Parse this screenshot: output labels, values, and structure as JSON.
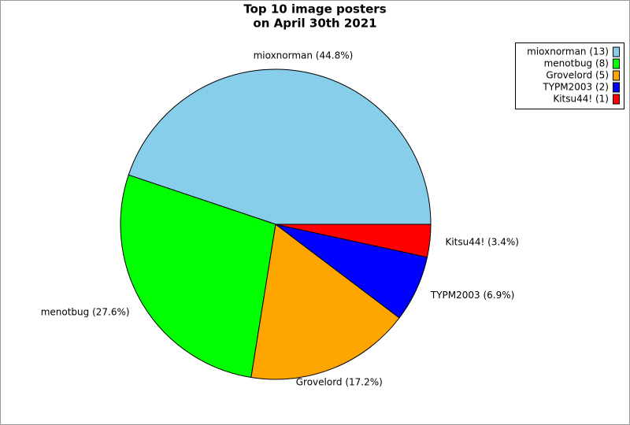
{
  "chart_data": {
    "type": "pie",
    "title": [
      "Top 10 image posters",
      "on April 30th 2021"
    ],
    "categories": [
      "mioxnorman (44.8%)",
      "menotbug (27.6%)",
      "Grovelord (17.2%)",
      "TYPM2003 (6.9%)",
      "Kitsu44! (3.4%)"
    ],
    "values": [
      44.8,
      27.6,
      17.2,
      6.9,
      3.4
    ],
    "colors": [
      "#87ceeb",
      "#00ff00",
      "#ffa500",
      "#0000ff",
      "#ff0000"
    ],
    "legend_labels": [
      "mioxnorman (13)",
      "menotbug (8)",
      "Grovelord (5)",
      "TYPM2003 (2)",
      "Kitsu44! (1)"
    ],
    "legend_position": "upper right"
  }
}
